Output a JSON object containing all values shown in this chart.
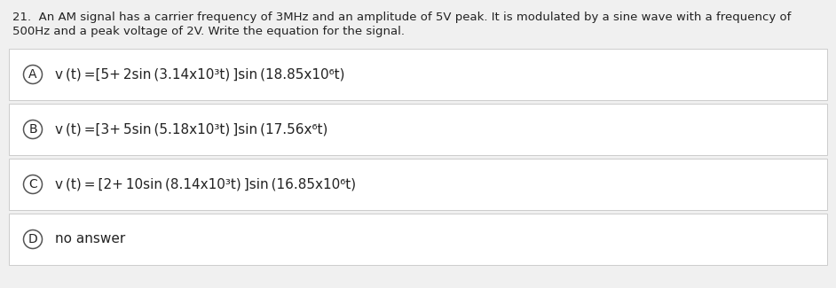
{
  "question_line1": "21.  An AM signal has a carrier frequency of 3MHz and an amplitude of 5V peak. It is modulated by a sine wave with a frequency of",
  "question_line2": "500Hz and a peak voltage of 2V. Write the equation for the signal.",
  "choices": [
    {
      "label": "A",
      "formula": "v (t) =[5+ 2sin (3.14x10³t) ]sin (18.85x10⁶t)"
    },
    {
      "label": "B",
      "formula": "v (t) =[3+ 5sin (5.18x10³t) ]sin (17.56x⁶t)"
    },
    {
      "label": "C",
      "formula": "v (t) = [2+ 10sin (8.14x10³t) ]sin (16.85x10⁶t)"
    },
    {
      "label": "D",
      "formula": "no answer"
    }
  ],
  "page_bg": "#f0f0f0",
  "box_bg": "#ffffff",
  "box_edge": "#cccccc",
  "text_color": "#222222",
  "circle_bg": "#ffffff",
  "circle_edge": "#555555",
  "question_fontsize": 9.5,
  "choice_fontsize": 11.0,
  "label_fontsize": 10.0
}
